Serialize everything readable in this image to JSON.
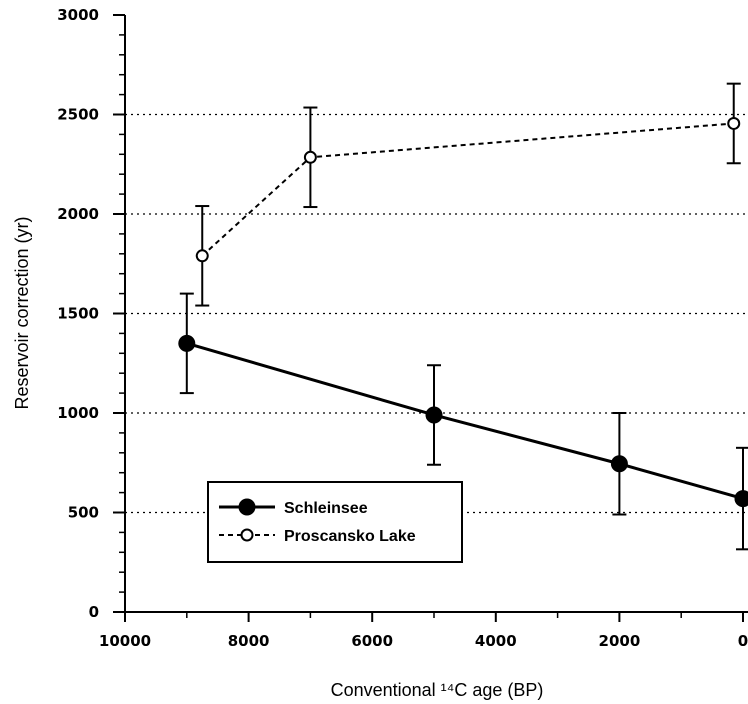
{
  "chart_data": {
    "type": "line",
    "xlabel": "Conventional ¹⁴C age (BP)",
    "ylabel": "Reservoir correction (yr)",
    "xlim": [
      10000,
      0
    ],
    "ylim": [
      0,
      3000
    ],
    "x_reversed": true,
    "xticks": [
      "10000",
      "8000",
      "6000",
      "4000",
      "2000",
      "0"
    ],
    "yticks": [
      "0",
      "500",
      "1000",
      "1500",
      "2000",
      "2500",
      "3000"
    ],
    "grid": "horizontal dotted",
    "legend_position": "lower-left",
    "series": [
      {
        "name": "Schleinsee",
        "style": "solid, filled circle",
        "x": [
          9000,
          5000,
          2000,
          0
        ],
        "y": [
          1350,
          990,
          745,
          570
        ],
        "error": [
          250,
          250,
          255,
          255
        ]
      },
      {
        "name": "Proscansko Lake",
        "style": "dashed, open circle",
        "x": [
          8750,
          7000,
          150
        ],
        "y": [
          1790,
          2285,
          2455
        ],
        "error": [
          250,
          250,
          200
        ]
      }
    ]
  }
}
